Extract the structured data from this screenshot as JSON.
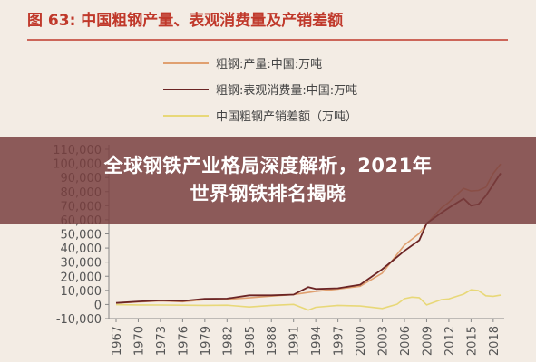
{
  "overlay": {
    "line1": "全球钢铁产业格局深度解析，2021年",
    "line2": "世界钢铁排名揭晓"
  },
  "chart_data": {
    "type": "line",
    "title": "图 63:  中国粗钢产量、表观消费量及产销差额",
    "xlabel": "",
    "ylabel": "",
    "ylim": [
      -10000,
      110000
    ],
    "yticks": [
      "110,000",
      "100,000",
      "90,000",
      "80,000",
      "70,000",
      "60,000",
      "50,000",
      "40,000",
      "30,000",
      "20,000",
      "10,000",
      "0",
      "-10,000"
    ],
    "ytick_values": [
      110000,
      100000,
      90000,
      80000,
      70000,
      60000,
      50000,
      40000,
      30000,
      20000,
      10000,
      0,
      -10000
    ],
    "xticks": [
      "1967",
      "1970",
      "1973",
      "1976",
      "1979",
      "1982",
      "1985",
      "1988",
      "1991",
      "1994",
      "1997",
      "2000",
      "2003",
      "2006",
      "2009",
      "2012",
      "2015",
      "2018"
    ],
    "xlim": [
      1967,
      2019
    ],
    "grid": false,
    "legend_position": "top-right",
    "colors": {
      "title": "#c0392b",
      "prod": "#e0a070",
      "cons": "#6b2424",
      "diff": "#e8d878",
      "background": "#f3ece4",
      "banner": "#783e3e"
    },
    "series": [
      {
        "name": "粗钢:产量:中国:万吨",
        "color": "#e0a070",
        "x": [
          1967,
          1970,
          1973,
          1976,
          1979,
          1982,
          1985,
          1988,
          1991,
          1994,
          1997,
          2000,
          2003,
          2006,
          2008,
          2009,
          2011,
          2012,
          2014,
          2015,
          2016,
          2017,
          2018,
          2019
        ],
        "values": [
          1000,
          1800,
          2500,
          2000,
          3400,
          3700,
          4700,
          5900,
          7100,
          9300,
          10900,
          12900,
          22200,
          42100,
          50300,
          57200,
          68500,
          72400,
          82300,
          80400,
          80800,
          83200,
          92800,
          99600
        ]
      },
      {
        "name": "粗钢:表观消费量:中国:万吨",
        "color": "#6b2424",
        "x": [
          1967,
          1970,
          1973,
          1976,
          1979,
          1982,
          1985,
          1988,
          1991,
          1993,
          1994,
          1997,
          2000,
          2003,
          2006,
          2008,
          2009,
          2011,
          2012,
          2014,
          2015,
          2016,
          2017,
          2018,
          2019
        ],
        "values": [
          1100,
          2100,
          2900,
          2500,
          4000,
          4200,
          6500,
          6500,
          7000,
          12300,
          11000,
          11500,
          14000,
          25000,
          38000,
          45500,
          57500,
          65000,
          68500,
          75000,
          70000,
          71000,
          77000,
          85000,
          93000
        ]
      },
      {
        "name": "中国粗钢产销差额（万吨）",
        "color": "#e8d878",
        "x": [
          1967,
          1970,
          1973,
          1976,
          1979,
          1982,
          1985,
          1988,
          1991,
          1993,
          1994,
          1997,
          2000,
          2003,
          2005,
          2006,
          2007,
          2008,
          2009,
          2011,
          2012,
          2014,
          2015,
          2016,
          2017,
          2018,
          2019
        ],
        "values": [
          -100,
          -300,
          -400,
          -500,
          -600,
          -500,
          -1800,
          -600,
          100,
          -4000,
          -2000,
          -600,
          -1100,
          -2800,
          200,
          4100,
          5200,
          4800,
          -300,
          3500,
          3900,
          7300,
          10400,
          9800,
          6200,
          5800,
          6600
        ]
      }
    ]
  }
}
